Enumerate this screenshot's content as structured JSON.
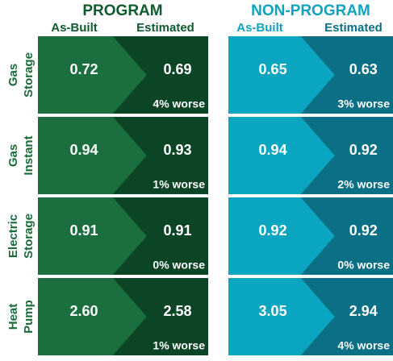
{
  "headers": {
    "program": "PROGRAM",
    "non_program": "NON-PROGRAM",
    "as_built": "As-Built",
    "estimated": "Estimated"
  },
  "rows": [
    {
      "label": [
        "Gas",
        "Storage"
      ],
      "program": {
        "as_built": "0.72",
        "estimated": "0.69",
        "diff": "4% worse"
      },
      "non_program": {
        "as_built": "0.65",
        "estimated": "0.63",
        "diff": "3% worse"
      }
    },
    {
      "label": [
        "Gas",
        "Instant"
      ],
      "program": {
        "as_built": "0.94",
        "estimated": "0.93",
        "diff": "1% worse"
      },
      "non_program": {
        "as_built": "0.94",
        "estimated": "0.92",
        "diff": "2% worse"
      }
    },
    {
      "label": [
        "Electric",
        "Storage"
      ],
      "program": {
        "as_built": "0.91",
        "estimated": "0.91",
        "diff": "0% worse"
      },
      "non_program": {
        "as_built": "0.92",
        "estimated": "0.92",
        "diff": "0% worse"
      }
    },
    {
      "label": [
        "Heat",
        "Pump"
      ],
      "program": {
        "as_built": "2.60",
        "estimated": "2.58",
        "diff": "1% worse"
      },
      "non_program": {
        "as_built": "3.05",
        "estimated": "2.94",
        "diff": "4% worse"
      }
    }
  ]
}
